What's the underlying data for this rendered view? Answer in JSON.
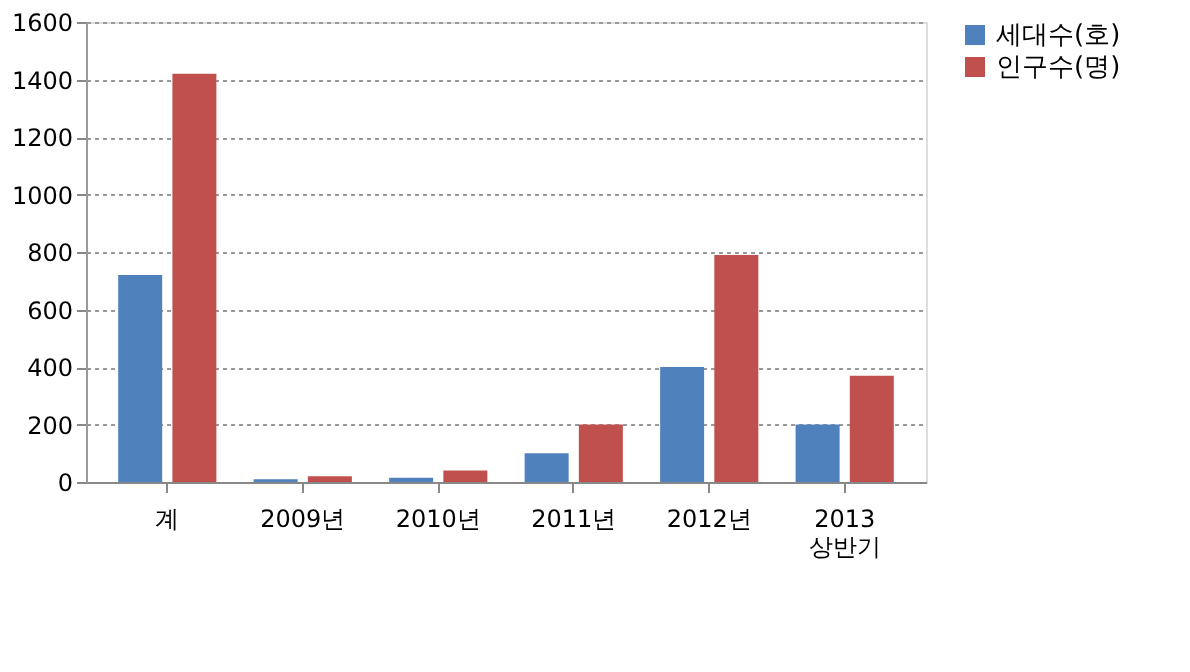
{
  "chart_data": {
    "type": "bar",
    "categories": [
      "계",
      "2009년",
      "2010년",
      "2011년",
      "2012년",
      "2013 상반기"
    ],
    "series": [
      {
        "name": "세대수(호)",
        "color": "#4f81bd",
        "values": [
          720,
          10,
          15,
          100,
          400,
          200
        ]
      },
      {
        "name": "인구수(명)",
        "color": "#c0504d",
        "values": [
          1420,
          20,
          40,
          200,
          790,
          370
        ]
      }
    ],
    "ylim": [
      0,
      1600
    ],
    "yticks": [
      0,
      200,
      400,
      600,
      800,
      1000,
      1200,
      1400,
      1600
    ],
    "grid": "y",
    "legend": "right"
  }
}
